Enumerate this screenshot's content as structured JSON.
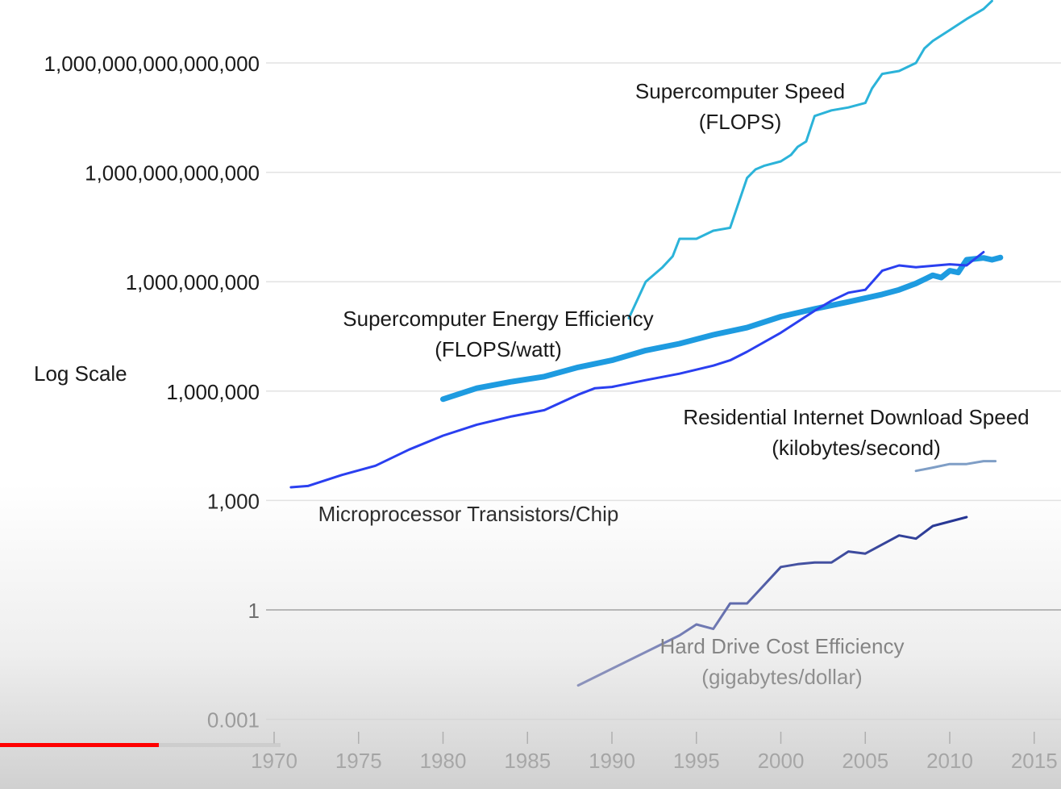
{
  "chart_data": {
    "type": "line",
    "ylabel": "Log Scale",
    "y_scale": "log",
    "xlim": [
      1970,
      2015
    ],
    "x_ticks": [
      1970,
      1975,
      1980,
      1985,
      1990,
      1995,
      2000,
      2005,
      2010,
      2015
    ],
    "y_ticks": [
      {
        "value": 0.001,
        "label": "0.001"
      },
      {
        "value": 1,
        "label": "1"
      },
      {
        "value": 1000,
        "label": "1,000"
      },
      {
        "value": 1000000,
        "label": "1,000,000"
      },
      {
        "value": 1000000000,
        "label": "1,000,000,000"
      },
      {
        "value": 1000000000000,
        "label": "1,000,000,000,000"
      },
      {
        "value": 1000000000000000,
        "label": "1,000,000,000,000,000"
      }
    ],
    "grid": true,
    "series": [
      {
        "name": "Supercomputer Speed (FLOPS)",
        "label_lines": [
          "Supercomputer Speed",
          "(FLOPS)"
        ],
        "color": "#2bb3d9",
        "points": [
          [
            1991,
            100000000.0
          ],
          [
            1992,
            1000000000.0
          ],
          [
            1993,
            2500000000.0
          ],
          [
            1993.6,
            5000000000.0
          ],
          [
            1994,
            15000000000.0
          ],
          [
            1995,
            15000000000.0
          ],
          [
            1996,
            25000000000.0
          ],
          [
            1997,
            30000000000.0
          ],
          [
            1998,
            700000000000.0
          ],
          [
            1998.5,
            1200000000000.0
          ],
          [
            1999,
            1500000000000.0
          ],
          [
            2000,
            2000000000000.0
          ],
          [
            2000.6,
            3000000000000.0
          ],
          [
            2001,
            5000000000000.0
          ],
          [
            2001.5,
            7000000000000.0
          ],
          [
            2002,
            35000000000000.0
          ],
          [
            2003,
            50000000000000.0
          ],
          [
            2004,
            60000000000000.0
          ],
          [
            2005,
            80000000000000.0
          ],
          [
            2005.4,
            200000000000000.0
          ],
          [
            2006,
            500000000000000.0
          ],
          [
            2007,
            600000000000000.0
          ],
          [
            2008,
            1000000000000000.0
          ],
          [
            2008.5,
            2500000000000000.0
          ],
          [
            2009,
            4000000000000000.0
          ],
          [
            2010,
            8000000000000000.0
          ],
          [
            2011,
            1.6e+16
          ],
          [
            2012,
            3e+16
          ],
          [
            2012.5,
            5e+16
          ]
        ],
        "style": "thin"
      },
      {
        "name": "Supercomputer Energy Efficiency (FLOPS/watt)",
        "label_lines": [
          "Supercomputer Energy Efficiency",
          "(FLOPS/watt)"
        ],
        "color": "#1e9be0",
        "points": [
          [
            1980,
            600000.0
          ],
          [
            1982,
            1200000.0
          ],
          [
            1984,
            1800000.0
          ],
          [
            1986,
            2500000.0
          ],
          [
            1988,
            4500000.0
          ],
          [
            1990,
            7000000.0
          ],
          [
            1992,
            13000000.0
          ],
          [
            1994,
            20000000.0
          ],
          [
            1996,
            35000000.0
          ],
          [
            1998,
            55000000.0
          ],
          [
            2000,
            110000000.0
          ],
          [
            2002,
            180000000.0
          ],
          [
            2004,
            280000000.0
          ],
          [
            2006,
            450000000.0
          ],
          [
            2007,
            600000000.0
          ],
          [
            2008,
            900000000.0
          ],
          [
            2009,
            1500000000.0
          ],
          [
            2009.5,
            1300000000.0
          ],
          [
            2010,
            2000000000.0
          ],
          [
            2010.5,
            1800000000.0
          ],
          [
            2011,
            4000000000.0
          ],
          [
            2012,
            4500000000.0
          ],
          [
            2012.5,
            4000000000.0
          ],
          [
            2013,
            4600000000.0
          ]
        ],
        "style": "thick"
      },
      {
        "name": "Microprocessor Transistors/Chip",
        "label_lines": [
          "Microprocessor Transistors/Chip"
        ],
        "color": "#2a3ff0",
        "points": [
          [
            1971,
            2300
          ],
          [
            1972,
            2500
          ],
          [
            1974,
            5000
          ],
          [
            1976,
            9000
          ],
          [
            1978,
            25000.0
          ],
          [
            1980,
            60000.0
          ],
          [
            1982,
            120000.0
          ],
          [
            1984,
            200000.0
          ],
          [
            1986,
            300000.0
          ],
          [
            1988,
            800000.0
          ],
          [
            1989,
            1200000.0
          ],
          [
            1990,
            1300000.0
          ],
          [
            1992,
            2000000.0
          ],
          [
            1994,
            3000000.0
          ],
          [
            1996,
            5000000.0
          ],
          [
            1997,
            7000000.0
          ],
          [
            1998,
            12000000.0
          ],
          [
            2000,
            40000000.0
          ],
          [
            2002,
            160000000.0
          ],
          [
            2003,
            300000000.0
          ],
          [
            2004,
            500000000.0
          ],
          [
            2005,
            600000000.0
          ],
          [
            2006,
            2000000000.0
          ],
          [
            2007,
            2800000000.0
          ],
          [
            2008,
            2500000000.0
          ],
          [
            2010,
            3000000000.0
          ],
          [
            2011,
            2800000000.0
          ],
          [
            2012,
            6500000000.0
          ]
        ],
        "style": "normal"
      },
      {
        "name": "Residential Internet Download Speed (kilobytes/second)",
        "label_lines": [
          "Residential Internet Download Speed",
          "(kilobytes/second)"
        ],
        "color": "#7f9ec6",
        "points": [
          [
            2008,
            6500
          ],
          [
            2009,
            8000
          ],
          [
            2010,
            10000.0
          ],
          [
            2011,
            10000.0
          ],
          [
            2012,
            12000.0
          ],
          [
            2012.7,
            12000.0
          ]
        ],
        "style": "normal"
      },
      {
        "name": "Hard Drive Cost Efficiency (gigabytes/dollar)",
        "label_lines": [
          "Hard Drive Cost Efficiency",
          "(gigabytes/dollar)"
        ],
        "color": "#0d1f8a",
        "points": [
          [
            1988,
            0.0085
          ],
          [
            1994,
            0.2
          ],
          [
            1995,
            0.4
          ],
          [
            1996,
            0.3
          ],
          [
            1997,
            1.5
          ],
          [
            1998,
            1.5
          ],
          [
            2000,
            15
          ],
          [
            2001,
            18
          ],
          [
            2002,
            20
          ],
          [
            2003,
            20
          ],
          [
            2004,
            40
          ],
          [
            2005,
            35
          ],
          [
            2007,
            110
          ],
          [
            2008,
            90
          ],
          [
            2009,
            200
          ],
          [
            2011,
            350
          ]
        ],
        "style": "normal"
      }
    ]
  },
  "video": {
    "progress": 0.15
  }
}
